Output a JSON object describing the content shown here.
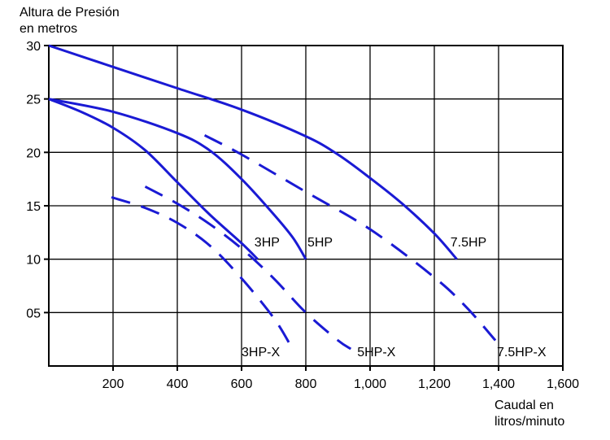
{
  "chart_data": {
    "type": "line",
    "ylabel": [
      "Altura de Presión",
      "en metros"
    ],
    "xlabel": [
      "Caudal en",
      "litros/minuto"
    ],
    "xlim": [
      0,
      1600
    ],
    "ylim": [
      0,
      30
    ],
    "x_ticks": [
      {
        "value": 200,
        "label": "200"
      },
      {
        "value": 400,
        "label": "400"
      },
      {
        "value": 600,
        "label": "600"
      },
      {
        "value": 800,
        "label": "800"
      },
      {
        "value": 1000,
        "label": "1,000"
      },
      {
        "value": 1200,
        "label": "1,200"
      },
      {
        "value": 1400,
        "label": "1,400"
      },
      {
        "value": 1600,
        "label": "1,600"
      }
    ],
    "y_ticks": [
      {
        "value": 5,
        "label": "05"
      },
      {
        "value": 10,
        "label": "10"
      },
      {
        "value": 15,
        "label": "15"
      },
      {
        "value": 20,
        "label": "20"
      },
      {
        "value": 25,
        "label": "25"
      },
      {
        "value": 30,
        "label": "30"
      }
    ],
    "grid": "vertical and horizontal",
    "line_color": "#1a1ad4",
    "series": [
      {
        "name": "3HP",
        "style": "solid",
        "label_at": [
          640,
          11.2
        ],
        "points": [
          [
            0,
            25
          ],
          [
            100,
            23.8
          ],
          [
            200,
            22.3
          ],
          [
            300,
            20.2
          ],
          [
            400,
            17.2
          ],
          [
            500,
            14.2
          ],
          [
            600,
            11.5
          ],
          [
            650,
            10
          ]
        ]
      },
      {
        "name": "5HP",
        "style": "solid",
        "label_at": [
          805,
          11.2
        ],
        "points": [
          [
            0,
            25
          ],
          [
            200,
            23.8
          ],
          [
            400,
            21.8
          ],
          [
            500,
            20.2
          ],
          [
            600,
            17.5
          ],
          [
            700,
            14.2
          ],
          [
            760,
            12
          ],
          [
            800,
            10
          ]
        ]
      },
      {
        "name": "7.5HP",
        "style": "solid",
        "label_at": [
          1250,
          11.2
        ],
        "points": [
          [
            0,
            30
          ],
          [
            200,
            28
          ],
          [
            400,
            26
          ],
          [
            600,
            24
          ],
          [
            800,
            21.5
          ],
          [
            900,
            19.8
          ],
          [
            1000,
            17.6
          ],
          [
            1100,
            15.2
          ],
          [
            1200,
            12.4
          ],
          [
            1270,
            10
          ]
        ]
      },
      {
        "name": "3HP-X",
        "style": "dashed",
        "label_at": [
          600,
          0.9
        ],
        "points": [
          [
            195,
            15.8
          ],
          [
            300,
            14.8
          ],
          [
            400,
            13.4
          ],
          [
            500,
            11.3
          ],
          [
            600,
            8.2
          ],
          [
            700,
            4.5
          ],
          [
            755,
            1.8
          ]
        ]
      },
      {
        "name": "5HP-X",
        "style": "dashed",
        "label_at": [
          960,
          0.9
        ],
        "points": [
          [
            300,
            16.8
          ],
          [
            400,
            15.2
          ],
          [
            500,
            13.3
          ],
          [
            600,
            11
          ],
          [
            700,
            8.2
          ],
          [
            800,
            5
          ],
          [
            900,
            2.4
          ],
          [
            940,
            1.6
          ]
        ]
      },
      {
        "name": "7.5HP-X",
        "style": "dashed",
        "label_at": [
          1395,
          0.9
        ],
        "points": [
          [
            485,
            21.6
          ],
          [
            600,
            19.8
          ],
          [
            800,
            16.3
          ],
          [
            1000,
            12.8
          ],
          [
            1200,
            8.3
          ],
          [
            1300,
            5.5
          ],
          [
            1390,
            2.4
          ]
        ]
      }
    ]
  }
}
